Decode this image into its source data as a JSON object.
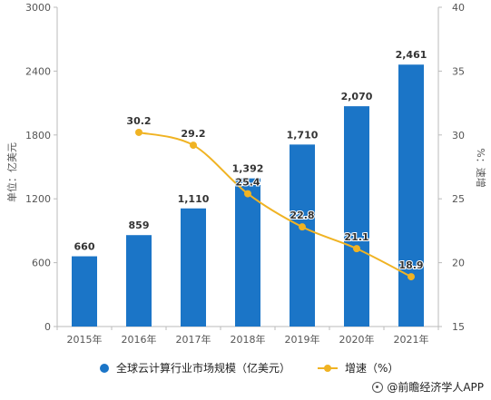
{
  "chart_data": {
    "type": "bar",
    "categories": [
      "2015年",
      "2016年",
      "2017年",
      "2018年",
      "2019年",
      "2020年",
      "2021年"
    ],
    "series": [
      {
        "name": "全球云计算行业市场规模（亿美元）",
        "type": "bar",
        "axis": "left",
        "color": "#1b75c7",
        "values": [
          660,
          859,
          1110,
          1392,
          1710,
          2070,
          2461
        ],
        "labels": [
          "660",
          "859",
          "1,110",
          "1,392",
          "1,710",
          "2,070",
          "2,461"
        ]
      },
      {
        "name": "增速（%）",
        "type": "line",
        "axis": "right",
        "color": "#f0b323",
        "values": [
          null,
          30.2,
          29.2,
          25.4,
          22.8,
          21.1,
          18.9
        ],
        "labels": [
          "",
          "30.2",
          "29.2",
          "25.4",
          "22.8",
          "21.1",
          "18.9"
        ]
      }
    ],
    "ylabel_left": "单位：亿美元",
    "ylabel_right": "%：速增",
    "ylim_left": [
      0,
      3000
    ],
    "yticks_left": [
      "0",
      "600",
      "1200",
      "1800",
      "2400",
      "3000"
    ],
    "ylim_right": [
      15,
      40
    ],
    "yticks_right": [
      "15",
      "20",
      "25",
      "30",
      "35",
      "40"
    ],
    "grid": false,
    "legend_position": "bottom"
  },
  "legend": {
    "bar_label": "全球云计算行业市场规模（亿美元）",
    "line_label": "增速（%）"
  },
  "source": "@前瞻经济学人APP",
  "colors": {
    "bar": "#1b75c7",
    "line": "#f0b323",
    "axis": "#bbbbbb"
  }
}
